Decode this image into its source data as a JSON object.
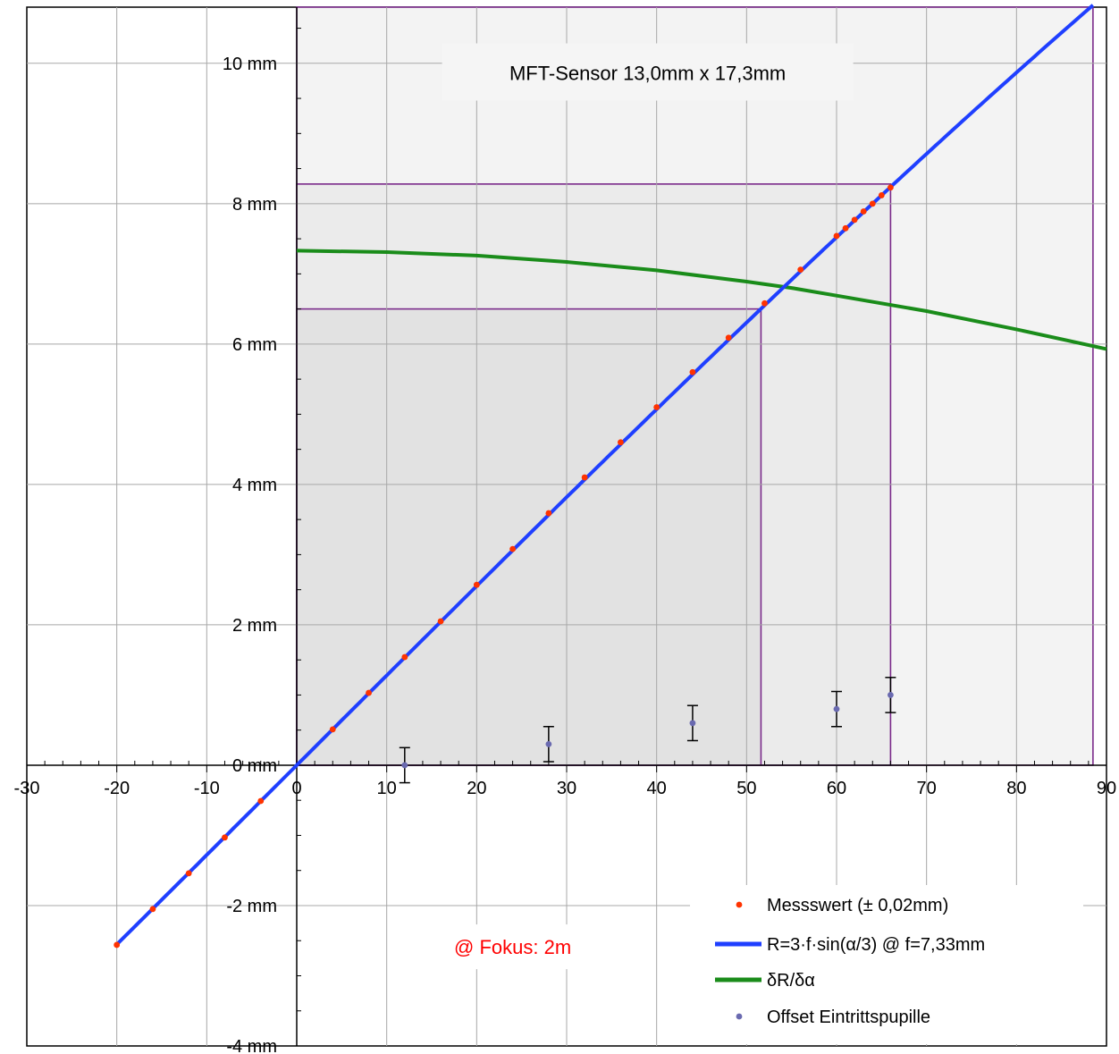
{
  "chart_data": {
    "type": "line",
    "title": "",
    "xlabel": "",
    "ylabel": "",
    "xlim": [
      -30,
      90
    ],
    "ylim": [
      -4,
      10.8
    ],
    "grid": true,
    "x_ticks": [
      -30,
      -20,
      -10,
      0,
      10,
      20,
      30,
      40,
      50,
      60,
      70,
      80,
      90
    ],
    "x_tick_labels": [
      "-30",
      "-20",
      "-10",
      "0",
      "10",
      "20",
      "30",
      "40",
      "50",
      "60",
      "70",
      "80",
      "90"
    ],
    "y_ticks": [
      -4,
      -2,
      0,
      2,
      4,
      6,
      8,
      10
    ],
    "y_tick_labels": [
      "-4 mm",
      "-2 mm",
      "0 mm",
      "2 mm",
      "4 mm",
      "6 mm",
      "8 mm",
      "10 mm"
    ],
    "series": [
      {
        "name": "Messswert (± 0,02mm)",
        "kind": "scatter",
        "color": "#ff3300",
        "points": [
          [
            -20,
            -2.56
          ],
          [
            -16,
            -2.05
          ],
          [
            -12,
            -1.54
          ],
          [
            -8,
            -1.03
          ],
          [
            -4,
            -0.51
          ],
          [
            4,
            0.51
          ],
          [
            8,
            1.03
          ],
          [
            12,
            1.54
          ],
          [
            16,
            2.05
          ],
          [
            20,
            2.57
          ],
          [
            24,
            3.08
          ],
          [
            28,
            3.59
          ],
          [
            32,
            4.1
          ],
          [
            36,
            4.6
          ],
          [
            40,
            5.1
          ],
          [
            44,
            5.6
          ],
          [
            48,
            6.09
          ],
          [
            52,
            6.58
          ],
          [
            56,
            7.06
          ],
          [
            60,
            7.54
          ],
          [
            61,
            7.65
          ],
          [
            62,
            7.77
          ],
          [
            63,
            7.89
          ],
          [
            64,
            8.0
          ],
          [
            65,
            8.12
          ],
          [
            66,
            8.23
          ]
        ]
      },
      {
        "name": "R=3·f·sin(α/3) @ f=7,33mm",
        "kind": "line",
        "color": "#1f3fff",
        "function": "R(alpha) = 3 * 7.33 * sin(alpha/3), alpha in degrees, R in mm",
        "x_range": [
          -20,
          88.5
        ]
      },
      {
        "name": "δR/δα",
        "kind": "line",
        "color": "#1a8c1a",
        "points": [
          [
            0,
            7.33
          ],
          [
            10,
            7.31
          ],
          [
            20,
            7.26
          ],
          [
            30,
            7.17
          ],
          [
            40,
            7.05
          ],
          [
            50,
            6.89
          ],
          [
            55,
            6.8
          ],
          [
            60,
            6.69
          ],
          [
            70,
            6.47
          ],
          [
            80,
            6.21
          ],
          [
            90,
            5.93
          ]
        ]
      },
      {
        "name": "Offset Eintrittspupille",
        "kind": "scatter_errorbar",
        "color": "#6a6ab0",
        "points": [
          [
            12,
            0.0
          ],
          [
            28,
            0.3
          ],
          [
            44,
            0.6
          ],
          [
            60,
            0.8
          ],
          [
            66,
            1.0
          ]
        ],
        "error": 0.25
      }
    ],
    "regions": [
      {
        "x": [
          0,
          51.6
        ],
        "y": [
          0,
          6.5
        ],
        "fill": "#e2e2e2"
      },
      {
        "x": [
          0,
          66
        ],
        "y": [
          0,
          8.28
        ],
        "fill": "#ebebeb"
      },
      {
        "x": [
          0,
          88.5
        ],
        "y": [
          0,
          10.8
        ],
        "fill": "#f3f3f3"
      }
    ],
    "annotations": [
      {
        "text": "MFT-Sensor 13,0mm x 17,3mm",
        "x": 39,
        "y": 9.8,
        "color": "#000000"
      },
      {
        "text": "@ Fokus: 2m",
        "x": 24,
        "y": -2.6,
        "color": "#ff0000"
      }
    ],
    "legend_position": "bottom-right"
  }
}
